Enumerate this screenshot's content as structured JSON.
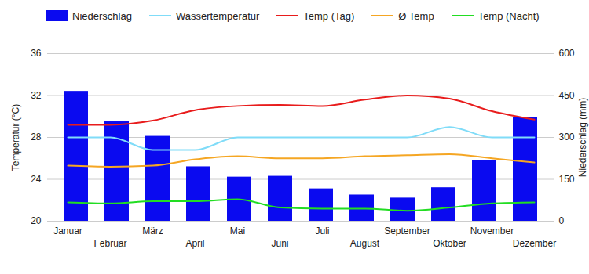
{
  "chart_data": {
    "type": "bar",
    "categories": [
      "Januar",
      "Februar",
      "März",
      "April",
      "Mai",
      "Juni",
      "Juli",
      "August",
      "September",
      "Oktober",
      "November",
      "Dezember"
    ],
    "series": [
      {
        "name": "Niederschlag",
        "type": "bar",
        "axis": "y2",
        "color": "#0a0af0",
        "values": [
          465,
          356,
          304,
          195,
          158,
          161,
          116,
          94,
          83,
          120,
          218,
          371
        ]
      },
      {
        "name": "Wassertemperatur",
        "type": "line",
        "color": "#80dcf8",
        "values": [
          28.0,
          28.0,
          26.8,
          26.8,
          28.0,
          28.0,
          28.0,
          28.0,
          28.0,
          29.0,
          28.0,
          28.0
        ]
      },
      {
        "name": "Temp (Tag)",
        "type": "line",
        "color": "#e81c1c",
        "values": [
          29.2,
          29.2,
          29.6,
          30.6,
          31.0,
          31.1,
          31.0,
          31.6,
          32.0,
          31.7,
          30.5,
          29.7
        ]
      },
      {
        "name": "Ø Temp",
        "type": "line",
        "color": "#f5a623",
        "values": [
          25.3,
          25.2,
          25.3,
          25.9,
          26.2,
          26.0,
          26.0,
          26.2,
          26.3,
          26.4,
          26.0,
          25.6
        ]
      },
      {
        "name": "Temp (Nacht)",
        "type": "line",
        "color": "#22dd22",
        "values": [
          21.8,
          21.7,
          21.9,
          21.9,
          22.1,
          21.3,
          21.2,
          21.2,
          21.0,
          21.3,
          21.7,
          21.8
        ]
      }
    ],
    "ylabel": "Temperatur (°C)",
    "ylim": [
      20,
      36
    ],
    "yticks": [
      20,
      24,
      28,
      32,
      36
    ],
    "y2label": "Niederschlag (mm)",
    "y2lim": [
      0,
      600
    ],
    "y2ticks": [
      0,
      150,
      300,
      450,
      600
    ],
    "grid": true,
    "legend": "top"
  }
}
